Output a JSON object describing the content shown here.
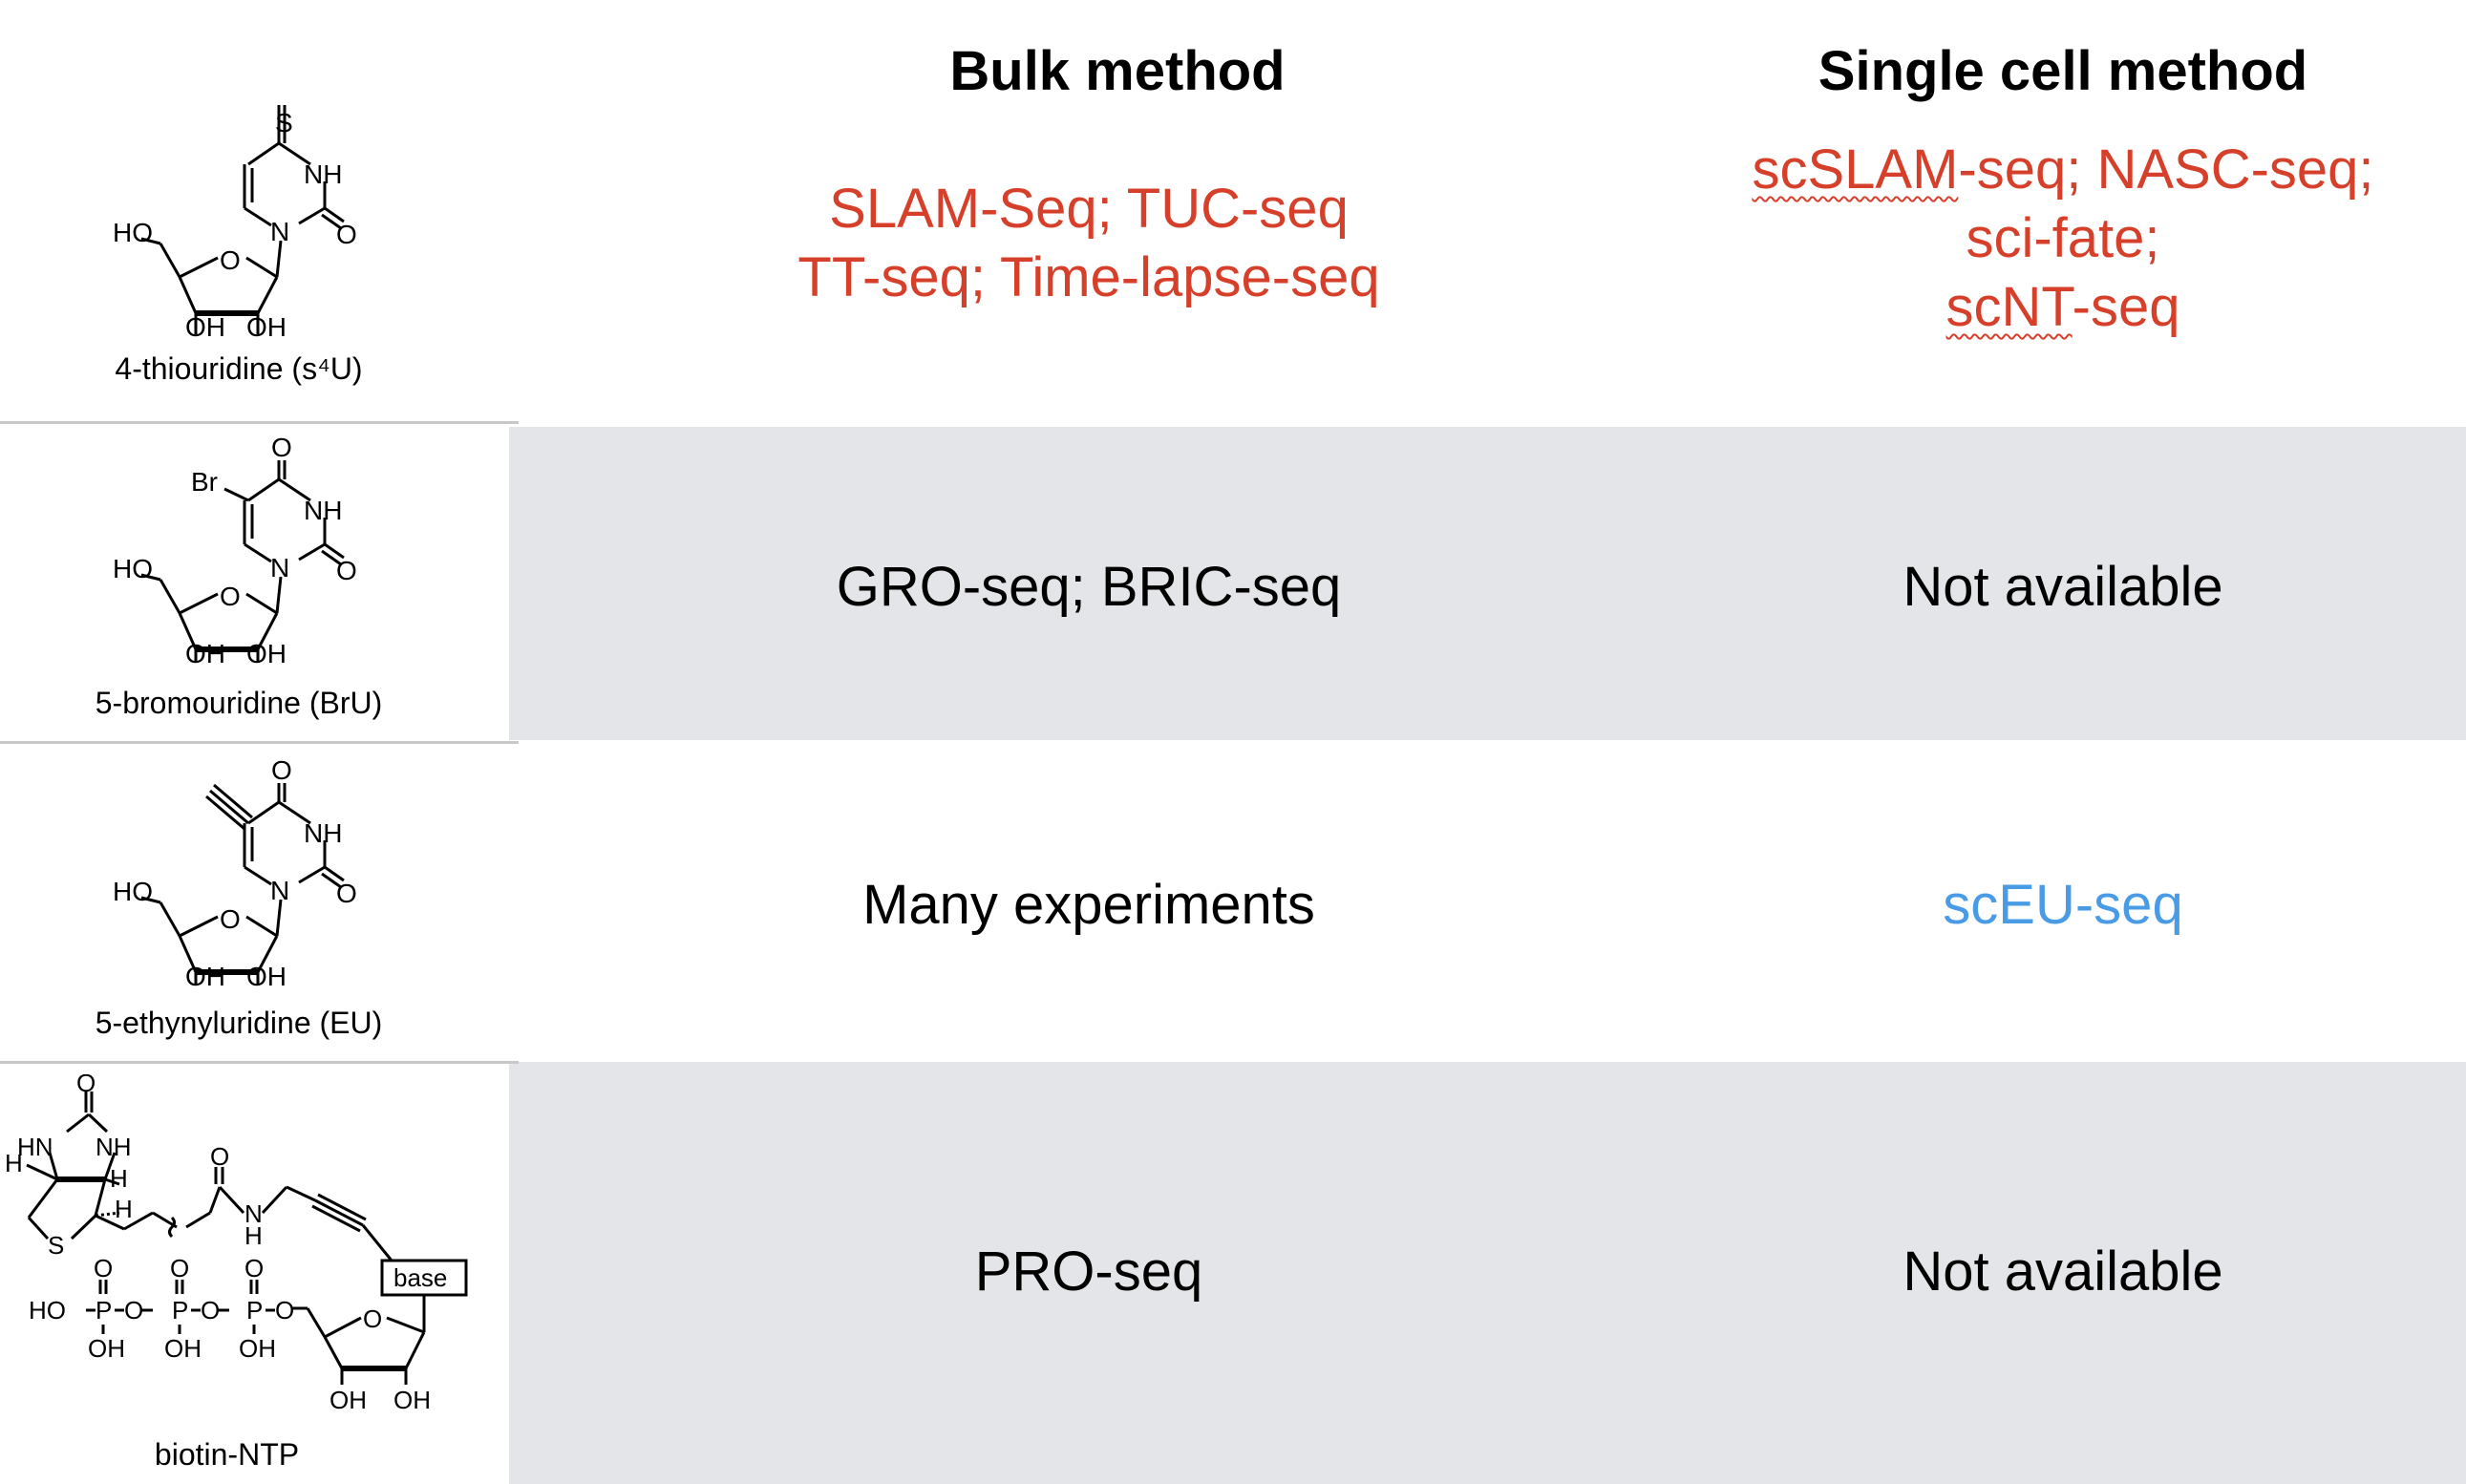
{
  "headers": {
    "bulk": "Bulk method",
    "single_cell": "Single cell method"
  },
  "rows": [
    {
      "compound": "4-thiouridine (s⁴U)",
      "bulk_lines": [
        "SLAM-Seq; TUC-seq",
        "TT-seq; Time-lapse-seq"
      ],
      "single_cell_parts": {
        "line1_a": "scSLAM",
        "line1_b": "-seq; NASC-seq;",
        "line2": "sci-fate;",
        "line3_a": "scNT",
        "line3_b": "-seq"
      },
      "text_color": "#d6402b"
    },
    {
      "compound": "5-bromouridine (BrU)",
      "bulk": "GRO-seq; BRIC-seq",
      "single_cell": "Not available"
    },
    {
      "compound": "5-ethynyluridine (EU)",
      "bulk": "Many experiments",
      "single_cell": "scEU-seq",
      "single_cell_color": "#4a9be6"
    },
    {
      "compound": "biotin-NTP",
      "bulk": "PRO-seq",
      "single_cell": "Not available"
    }
  ],
  "colors": {
    "band": "#e4e5e8",
    "red_text": "#d6402b",
    "blue_text": "#4a9be6",
    "divider": "#c8c8c8"
  },
  "structure_atoms": {
    "s4u": {
      "S": "S",
      "NH": "NH",
      "N": "N",
      "O": "O",
      "HO": "HO",
      "ring_O": "O",
      "OH1": "OH",
      "OH2": "OH"
    },
    "bru": {
      "Br": "Br",
      "top_O": "O",
      "NH": "NH",
      "N": "N",
      "O": "O",
      "HO": "HO",
      "ring_O": "O",
      "OH1": "OH",
      "OH2": "OH"
    },
    "eu": {
      "top_O": "O",
      "NH": "NH",
      "N": "N",
      "O": "O",
      "HO": "HO",
      "ring_O": "O",
      "OH1": "OH",
      "OH2": "OH"
    },
    "biotin": {
      "top_O": "O",
      "HN": "HN",
      "NH": "NH",
      "H1": "H",
      "H2": "H",
      "H3": "H",
      "S": "S",
      "amide_O": "O",
      "amide_N": "N",
      "amide_H": "H",
      "base": "base",
      "HO": "HO",
      "P1": "P",
      "P2": "P",
      "P3": "P",
      "O1": "O",
      "O2": "O",
      "O3": "O",
      "OH1": "OH",
      "OH2": "OH",
      "OH3": "OH",
      "link_O1": "O",
      "link_O2": "O",
      "link_O3": "O",
      "ring_O": "O",
      "sugar_OH1": "OH",
      "sugar_OH2": "OH"
    }
  }
}
